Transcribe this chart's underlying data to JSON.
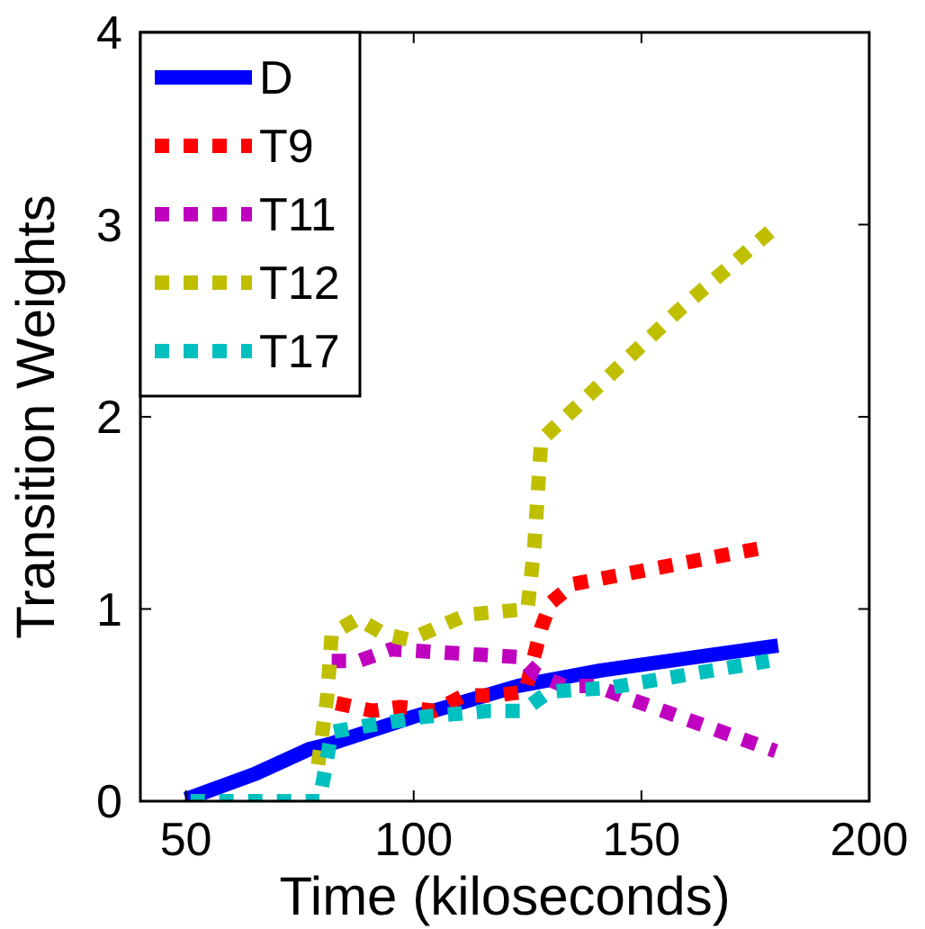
{
  "chart_data": {
    "type": "line",
    "xlabel": "Time (kiloseconds)",
    "ylabel": "Transition Weights",
    "xlim": [
      40,
      200
    ],
    "ylim": [
      0,
      4
    ],
    "xticks": [
      50,
      100,
      150,
      200
    ],
    "yticks": [
      0,
      1,
      2,
      3,
      4
    ],
    "grid": false,
    "legend": "top left",
    "series": [
      {
        "name": "D",
        "color": "#0000ff",
        "line_style": "solid",
        "x": [
          50,
          65,
          77,
          82,
          100,
          123,
          141,
          180
        ],
        "values": [
          0.01,
          0.14,
          0.27,
          0.3,
          0.44,
          0.6,
          0.68,
          0.81
        ]
      },
      {
        "name": "T9",
        "color": "#ff0000",
        "line_style": "dotted",
        "x": [
          83,
          91,
          97,
          104.5,
          111,
          118,
          124.5,
          128,
          130,
          135,
          177
        ],
        "values": [
          0.51,
          0.47,
          0.49,
          0.47,
          0.55,
          0.55,
          0.57,
          0.9,
          1.03,
          1.13,
          1.32
        ]
      },
      {
        "name": "T11",
        "color": "#bf00bf",
        "line_style": "dotted",
        "x": [
          82,
          88,
          95,
          109,
          123,
          127,
          133,
          140,
          146.5,
          179.5
        ],
        "values": [
          0.73,
          0.73,
          0.79,
          0.77,
          0.75,
          0.66,
          0.6,
          0.6,
          0.54,
          0.26
        ]
      },
      {
        "name": "T12",
        "color": "#bfbf00",
        "line_style": "dotted",
        "x": [
          79,
          81,
          82,
          87.7,
          93.5,
          99,
          111.6,
          125,
          126.5,
          128,
          137,
          158,
          180
        ],
        "values": [
          0.19,
          0.54,
          0.87,
          0.95,
          0.87,
          0.84,
          0.97,
          1.0,
          1.33,
          1.88,
          2.08,
          2.55,
          3.0
        ]
      },
      {
        "name": "T17",
        "color": "#00bfbf",
        "line_style": "dotted",
        "x": [
          51,
          79.3,
          80.6,
          82,
          89,
          102.6,
          116.8,
          124,
          129.7,
          143,
          178
        ],
        "values": [
          0,
          0,
          0.17,
          0.36,
          0.39,
          0.44,
          0.47,
          0.47,
          0.57,
          0.59,
          0.73
        ]
      }
    ]
  }
}
